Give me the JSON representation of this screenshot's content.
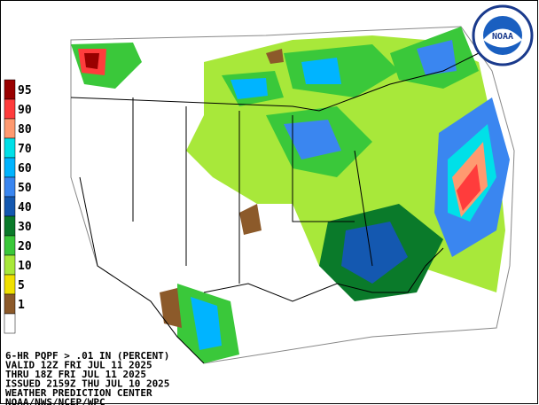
{
  "legend": {
    "items": [
      {
        "label": "95",
        "color": "#990000"
      },
      {
        "label": "90",
        "color": "#ff3c3c"
      },
      {
        "label": "80",
        "color": "#ff9a70"
      },
      {
        "label": "70",
        "color": "#00e0e8"
      },
      {
        "label": "60",
        "color": "#00b4ff"
      },
      {
        "label": "50",
        "color": "#3a86f0"
      },
      {
        "label": "40",
        "color": "#1458b0"
      },
      {
        "label": "30",
        "color": "#0a7a2a"
      },
      {
        "label": "20",
        "color": "#3ac83a"
      },
      {
        "label": "10",
        "color": "#a8e83a"
      },
      {
        "label": "5",
        "color": "#f0e000"
      },
      {
        "label": "1",
        "color": "#8c5a2a"
      },
      {
        "label": "",
        "color": "#ffffff"
      }
    ]
  },
  "footer": {
    "lines": [
      "6-HR PQPF > .01 IN (PERCENT)",
      "VALID 12Z FRI JUL 11 2025",
      "THRU 18Z FRI JUL 11 2025",
      "ISSUED 2159Z THU JUL 10 2025",
      "WEATHER PREDICTION CENTER",
      "NOAA/NWS/NCEP/WPC"
    ]
  },
  "logo": "NOAA"
}
